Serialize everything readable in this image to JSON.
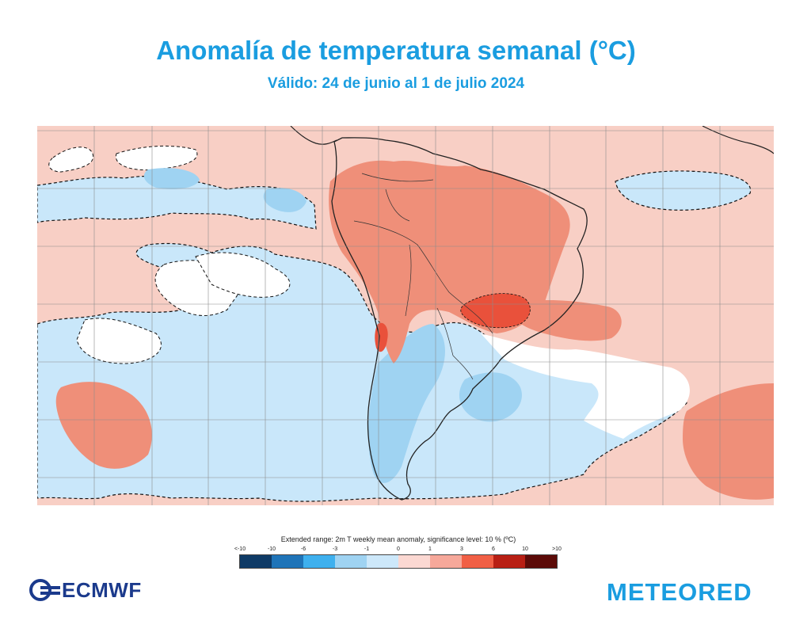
{
  "header": {
    "title": "Anomalía de temperatura semanal  (°C)",
    "subtitle": "Válido: 24 de junio al 1 de julio 2024",
    "title_color": "#1a9de0"
  },
  "map": {
    "region": "South America and adjacent oceans",
    "variable": "2m T weekly mean anomaly",
    "colors": {
      "sea_warm": "#f8cfc5",
      "land_warm": "#ef8f79",
      "hot_core": "#e9513b",
      "cool": "#c9e7fa",
      "cold": "#9fd3f2",
      "neutral": "#ffffff",
      "border": "#222222",
      "grid": "#8c8c8c"
    }
  },
  "legend": {
    "title": "Extended range: 2m T weekly mean anomaly, significance level: 10 % (ºC)",
    "tick_labels": [
      "<-10",
      "-10",
      "-6",
      "-3",
      "-1",
      "0",
      "1",
      "3",
      "6",
      "10",
      ">10"
    ],
    "colors": [
      "#0e3a66",
      "#1f74b8",
      "#3eb0ee",
      "#9fd3f2",
      "#cde8fa",
      "#fbd8d2",
      "#f6a89a",
      "#f15f45",
      "#b81f14",
      "#5c0b08"
    ]
  },
  "logos": {
    "left": "ECMWF",
    "right": "METEORED"
  }
}
